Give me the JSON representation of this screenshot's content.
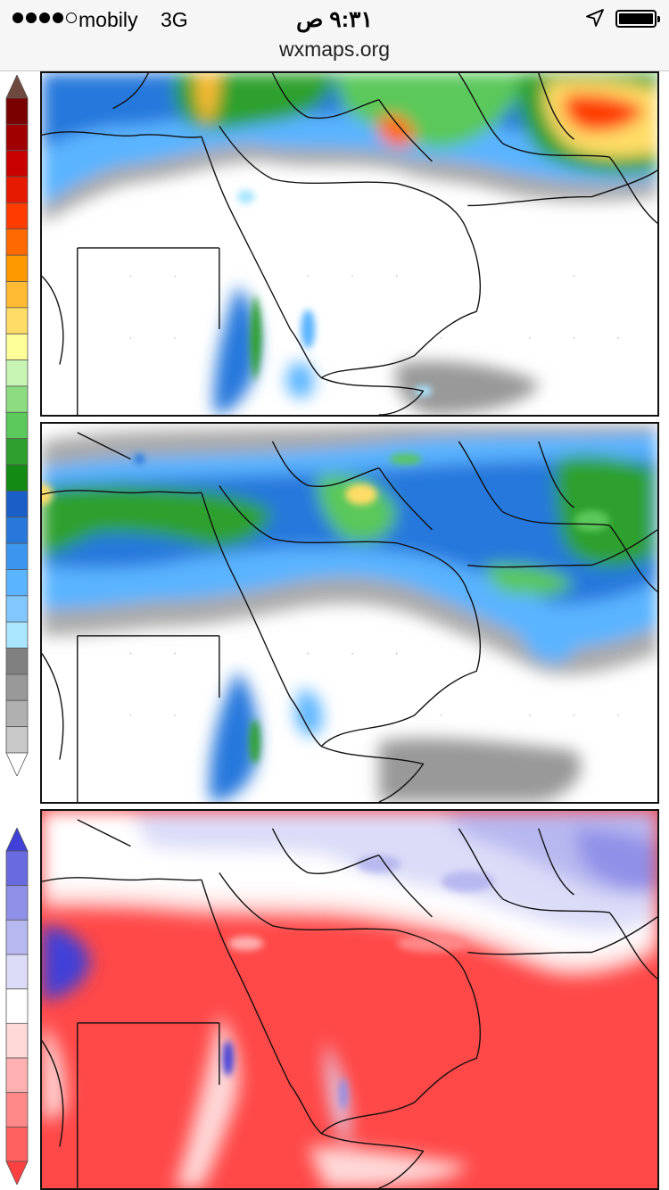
{
  "status_bar": {
    "carrier": "mobily",
    "network": "3G",
    "time": "٩:٣١ ص",
    "signal_bars_filled": 4,
    "signal_bars_total": 5,
    "battery_level": 1.0
  },
  "address_bar": {
    "url": "wxmaps.org"
  },
  "precip_legend": {
    "colors": [
      "#6e4a3e",
      "#7a0000",
      "#a00000",
      "#c80000",
      "#e61a00",
      "#ff3c00",
      "#ff6a00",
      "#ff9900",
      "#ffbb33",
      "#ffdd66",
      "#ffff99",
      "#c8f5b4",
      "#8cdc82",
      "#5ac85a",
      "#2ea02e",
      "#138a13",
      "#1a5fc8",
      "#2878dc",
      "#3c96f0",
      "#5ab4ff",
      "#82c8ff",
      "#aae6ff",
      "#808080",
      "#999999",
      "#b0b0b0",
      "#c8c8c8",
      "#ffffff"
    ]
  },
  "anomaly_legend": {
    "colors": [
      "#4040d8",
      "#6a6ae0",
      "#9090e8",
      "#b8b8f0",
      "#dcdcf8",
      "#ffffff",
      "#ffd8d8",
      "#ffb0b0",
      "#ff8888",
      "#ff6060",
      "#ff4040"
    ]
  },
  "maps": [
    {
      "name": "precip-map-top",
      "field": "precipitation"
    },
    {
      "name": "precip-map-middle",
      "field": "precipitation"
    },
    {
      "name": "anomaly-map-bottom",
      "field": "temperature-anomaly"
    }
  ]
}
